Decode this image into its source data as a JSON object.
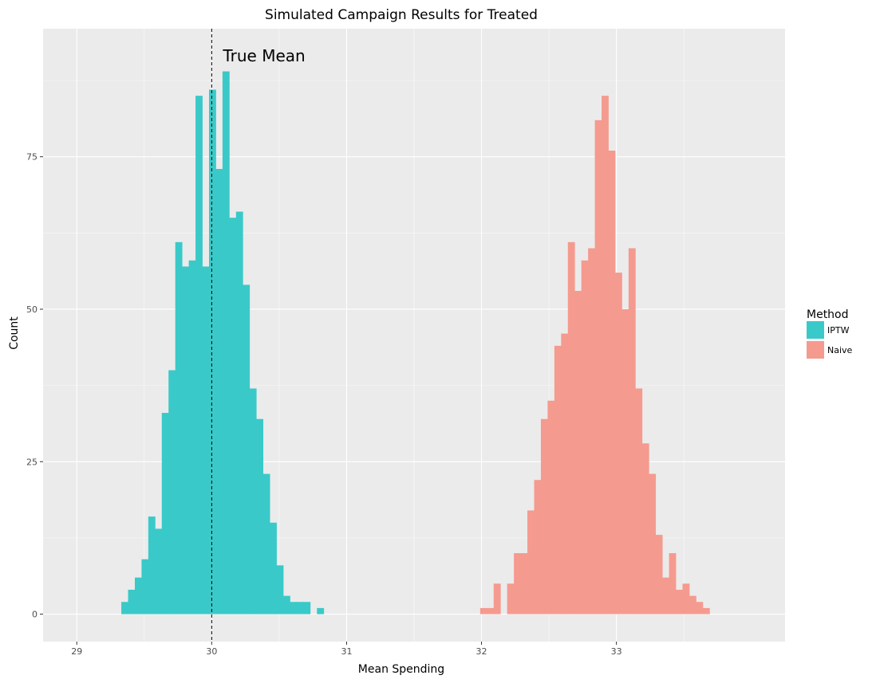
{
  "chart_data": {
    "type": "histogram",
    "title": "Simulated Campaign Results for Treated",
    "xlabel": "Mean Spending",
    "ylabel": "Count",
    "xlim": [
      28.75,
      34.25
    ],
    "ylim": [
      -4.5,
      96
    ],
    "x_ticks": [
      29,
      30,
      31,
      32,
      33
    ],
    "x_tick_labels": [
      "29",
      "30",
      "31",
      "32",
      "33"
    ],
    "y_ticks": [
      0,
      25,
      50,
      75
    ],
    "y_tick_labels": [
      "0",
      "25",
      "50",
      "75"
    ],
    "grid": true,
    "bin_width": 0.05,
    "background": "#ebebeb",
    "legend": {
      "title": "Method",
      "position": "right",
      "entries": [
        "IPTW",
        "Naive"
      ]
    },
    "reference_line": {
      "x": 30.0,
      "label": "True Mean",
      "style": "dashed"
    },
    "series": [
      {
        "name": "IPTW",
        "color": "#3ac9c9",
        "bin_starts": [
          29.33,
          29.38,
          29.43,
          29.48,
          29.53,
          29.58,
          29.63,
          29.68,
          29.73,
          29.78,
          29.83,
          29.88,
          29.93,
          29.98,
          30.03,
          30.08,
          30.13,
          30.18,
          30.23,
          30.28,
          30.33,
          30.38,
          30.43,
          30.48,
          30.53,
          30.58,
          30.63,
          30.68,
          30.73,
          30.78
        ],
        "counts": [
          2,
          4,
          6,
          9,
          16,
          14,
          33,
          40,
          61,
          57,
          58,
          85,
          57,
          86,
          73,
          89,
          65,
          66,
          54,
          37,
          32,
          23,
          15,
          8,
          3,
          2,
          2,
          2,
          0,
          1
        ]
      },
      {
        "name": "Naive",
        "color": "#f59a8f",
        "bin_starts": [
          31.99,
          32.04,
          32.09,
          32.14,
          32.19,
          32.24,
          32.29,
          32.34,
          32.39,
          32.44,
          32.49,
          32.54,
          32.59,
          32.64,
          32.69,
          32.74,
          32.79,
          32.84,
          32.89,
          32.94,
          32.99,
          33.04,
          33.09,
          33.14,
          33.19,
          33.24,
          33.29,
          33.34,
          33.39,
          33.44,
          33.49,
          33.54,
          33.59,
          33.64,
          33.69
        ],
        "counts": [
          1,
          1,
          5,
          0,
          5,
          10,
          10,
          17,
          22,
          32,
          35,
          44,
          46,
          61,
          53,
          58,
          60,
          81,
          85,
          76,
          56,
          50,
          60,
          37,
          28,
          23,
          13,
          6,
          10,
          4,
          5,
          3,
          2,
          1,
          0
        ]
      }
    ]
  }
}
